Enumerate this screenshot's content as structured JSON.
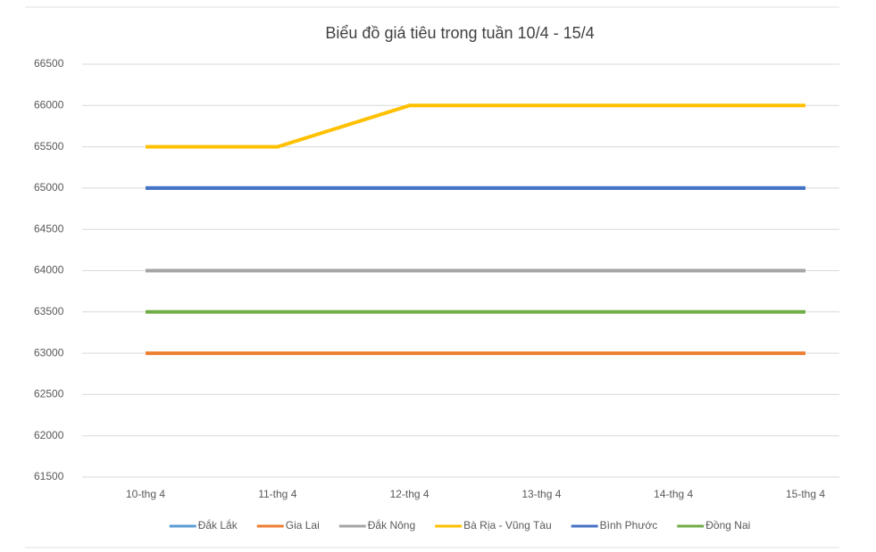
{
  "chart_data": {
    "type": "line",
    "title": "Biểu đồ giá tiêu trong tuần 10/4 - 15/4",
    "categories": [
      "10-thg 4",
      "11-thg 4",
      "12-thg 4",
      "13-thg 4",
      "14-thg 4",
      "15-thg 4"
    ],
    "series": [
      {
        "name": "Đắk Lắk",
        "color": "#5b9bd5",
        "values": [
          65000,
          65000,
          65000,
          65000,
          65000,
          65000
        ]
      },
      {
        "name": "Gia Lai",
        "color": "#ed7d31",
        "values": [
          63000,
          63000,
          63000,
          63000,
          63000,
          63000
        ]
      },
      {
        "name": "Đắk Nông",
        "color": "#a5a5a5",
        "values": [
          64000,
          64000,
          64000,
          64000,
          64000,
          64000
        ]
      },
      {
        "name": "Bà Rịa - Vũng Tàu",
        "color": "#ffc000",
        "values": [
          65500,
          65500,
          66000,
          66000,
          66000,
          66000
        ]
      },
      {
        "name": "Bình Phước",
        "color": "#4472c4",
        "values": [
          65000,
          65000,
          65000,
          65000,
          65000,
          65000
        ]
      },
      {
        "name": "Đồng Nai",
        "color": "#70ad47",
        "values": [
          63500,
          63500,
          63500,
          63500,
          63500,
          63500
        ]
      }
    ],
    "ylim": [
      61500,
      66500
    ],
    "yticks": [
      61500,
      62000,
      62500,
      63000,
      63500,
      64000,
      64500,
      65000,
      65500,
      66000,
      66500
    ],
    "grid": true,
    "legend": "bottom"
  }
}
